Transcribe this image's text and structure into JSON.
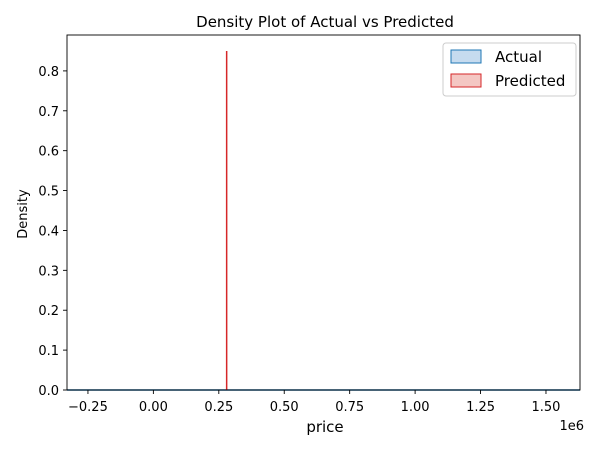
{
  "chart_data": {
    "type": "area",
    "title": "Density Plot of Actual vs Predicted",
    "xlabel": "price",
    "ylabel": "Density",
    "x_offset_label": "1e6",
    "xlim": [
      -0.33,
      1.63
    ],
    "ylim": [
      0.0,
      0.89
    ],
    "x_ticks": [
      -0.25,
      0.0,
      0.25,
      0.5,
      0.75,
      1.0,
      1.25,
      1.5
    ],
    "x_tick_labels": [
      "−0.25",
      "0.00",
      "0.25",
      "0.50",
      "0.75",
      "1.00",
      "1.25",
      "1.50"
    ],
    "y_ticks": [
      0.0,
      0.1,
      0.2,
      0.3,
      0.4,
      0.5,
      0.6,
      0.7,
      0.8
    ],
    "y_tick_labels": [
      "0.0",
      "0.1",
      "0.2",
      "0.3",
      "0.4",
      "0.5",
      "0.6",
      "0.7",
      "0.8"
    ],
    "grid": false,
    "legend_position": "top-right",
    "series": [
      {
        "name": "Actual",
        "color": "#1f77b4",
        "fill": "#c6dbef",
        "x": [
          -0.33,
          0.0,
          0.28,
          0.6,
          1.0,
          1.3,
          1.63
        ],
        "y": [
          0.0,
          0.0,
          0.0,
          0.0,
          0.0,
          0.0,
          0.0
        ]
      },
      {
        "name": "Predicted",
        "color": "#d62728",
        "fill": "#f4c7c3",
        "x": [
          0.28
        ],
        "y": [
          0.85
        ]
      }
    ]
  }
}
